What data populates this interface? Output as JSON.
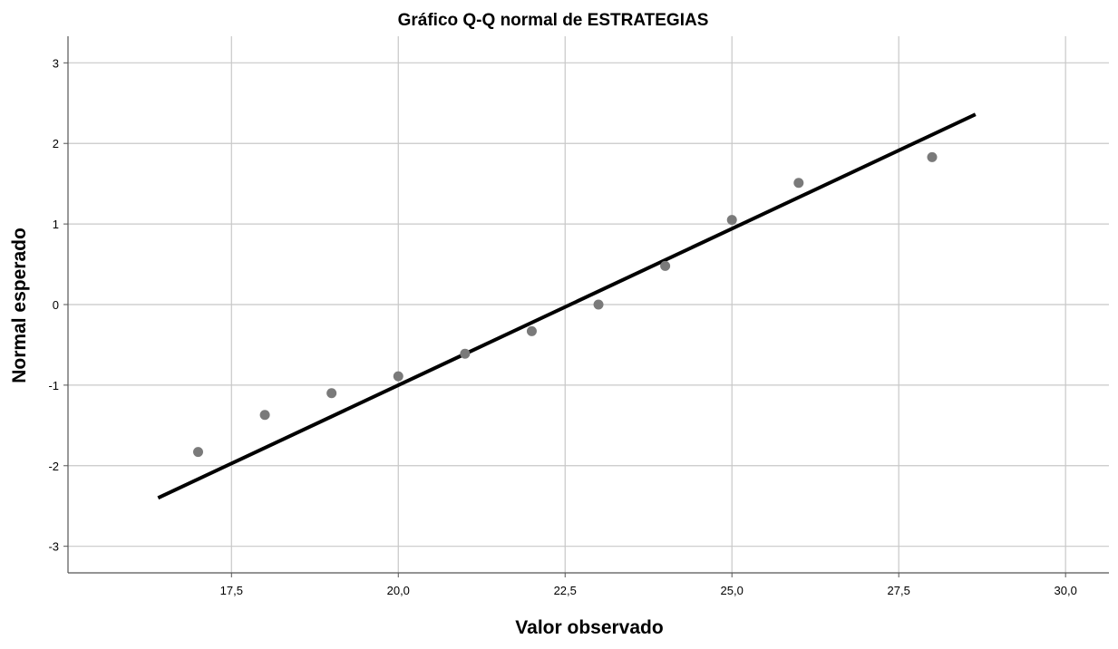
{
  "chart_data": {
    "type": "scatter",
    "title": "Gráfico Q-Q normal de ESTRATEGIAS",
    "xlabel": "Valor observado",
    "ylabel": "Normal esperado",
    "xlim": [
      15.05,
      30.65
    ],
    "ylim": [
      -3.33,
      3.33
    ],
    "x_ticks": [
      17.5,
      20.0,
      22.5,
      25.0,
      27.5,
      30.0
    ],
    "x_tick_labels": [
      "17,5",
      "20,0",
      "22,5",
      "25,0",
      "27,5",
      "30,0"
    ],
    "y_ticks": [
      3,
      2,
      1,
      0,
      -1,
      -2,
      -3
    ],
    "y_tick_labels": [
      "3",
      "2",
      "1",
      "0",
      "-1",
      "-2",
      "-3"
    ],
    "grid": true,
    "points": [
      {
        "x": 17,
        "y": -1.83
      },
      {
        "x": 18,
        "y": -1.37
      },
      {
        "x": 19,
        "y": -1.1
      },
      {
        "x": 20,
        "y": -0.89
      },
      {
        "x": 21,
        "y": -0.61
      },
      {
        "x": 22,
        "y": -0.33
      },
      {
        "x": 23,
        "y": 0.0
      },
      {
        "x": 24,
        "y": 0.48
      },
      {
        "x": 25,
        "y": 1.05
      },
      {
        "x": 26,
        "y": 1.51
      },
      {
        "x": 28,
        "y": 1.83
      }
    ],
    "reference_line": {
      "x": [
        16.4,
        28.65
      ],
      "y": [
        -2.4,
        2.36
      ]
    },
    "colors": {
      "points": "#7a7a7a",
      "line": "#000000",
      "grid": "#c8c8c8"
    }
  }
}
